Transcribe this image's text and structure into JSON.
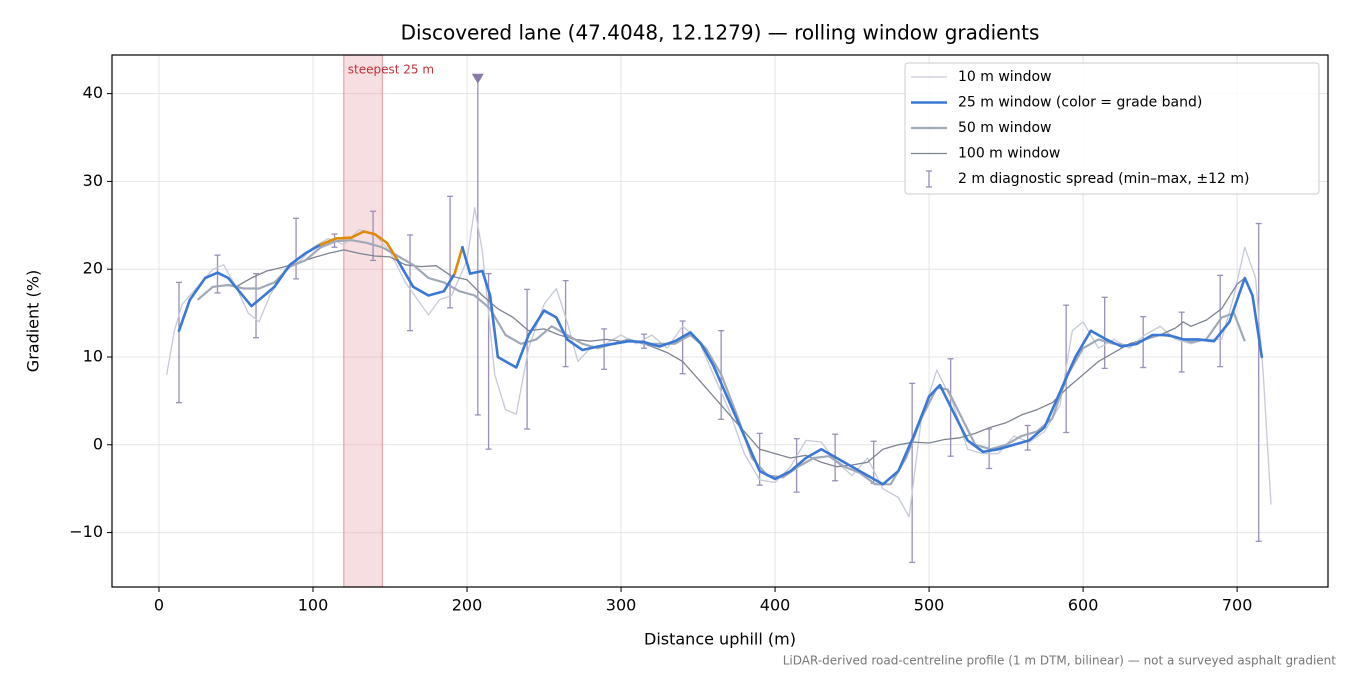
{
  "chart_data": {
    "type": "line",
    "title": "Discovered lane (47.4048, 12.1279) — rolling window gradients",
    "xlabel": "Distance uphill (m)",
    "ylabel": "Gradient (%)",
    "footnote": "LiDAR-derived road-centreline profile (1 m DTM, bilinear) — not a surveyed asphalt gradient",
    "xlim": [
      -30.5,
      759
    ],
    "ylim": [
      -16.2,
      44.4
    ],
    "xticks": [
      0,
      100,
      200,
      300,
      400,
      500,
      600,
      700
    ],
    "yticks": [
      {
        "value": -10,
        "label": "−10"
      },
      0,
      10,
      20,
      30,
      40
    ],
    "grid": true,
    "legend": "upper right",
    "highlight": {
      "text": "steepest 25 m",
      "x0": 120,
      "x1": 145,
      "color": "#e8a2aa"
    },
    "series": [
      {
        "name": "10 m window",
        "color": "#c5cad6",
        "line_width": 1.3,
        "x": [
          5,
          10,
          15,
          25,
          35,
          42,
          50,
          58,
          65,
          72,
          82,
          92,
          100,
          110,
          120,
          130,
          140,
          150,
          160,
          170,
          175,
          182,
          190,
          195,
          200,
          205,
          210,
          218,
          225,
          232,
          240,
          250,
          258,
          265,
          272,
          280,
          290,
          300,
          310,
          320,
          330,
          340,
          350,
          360,
          370,
          380,
          390,
          400,
          410,
          420,
          430,
          440,
          450,
          460,
          470,
          480,
          487,
          495,
          505,
          515,
          525,
          535,
          545,
          555,
          565,
          575,
          585,
          593,
          600,
          610,
          620,
          630,
          640,
          650,
          660,
          670,
          680,
          690,
          698,
          705,
          712,
          717,
          722
        ],
        "values": [
          8,
          13,
          16,
          18,
          20,
          20.5,
          18,
          15,
          14,
          17,
          20,
          21,
          22.5,
          23.5,
          22.8,
          24.5,
          24,
          22,
          18.5,
          16,
          14.8,
          16.5,
          17,
          19,
          21,
          27,
          22,
          8,
          4,
          3.5,
          11,
          16,
          17.8,
          14,
          9.5,
          11,
          11.5,
          12.5,
          11.5,
          12.5,
          11,
          13.5,
          12,
          8,
          4,
          -1,
          -4,
          -4.3,
          -2.5,
          0.5,
          0.3,
          -2,
          -3.5,
          -1.5,
          -5,
          -6,
          -8.2,
          3,
          8.5,
          5,
          -0.5,
          -1,
          -1,
          1,
          0.3,
          1.5,
          4.5,
          13,
          14,
          11,
          12,
          11,
          12.5,
          13.5,
          12,
          11.5,
          12,
          12,
          17,
          22.5,
          19,
          8,
          -6.8
        ]
      },
      {
        "name": "25 m window (color = grade band)",
        "color": "#3a78d6",
        "line_width": 2.6,
        "x": [
          13,
          20,
          30,
          38,
          45,
          52,
          60,
          65,
          75,
          85,
          95,
          105,
          115,
          125,
          133,
          140,
          148,
          155,
          165,
          175,
          185,
          192,
          197,
          202,
          210,
          215,
          220,
          225,
          232,
          240,
          250,
          258,
          265,
          275,
          285,
          295,
          305,
          315,
          325,
          335,
          345,
          352,
          360,
          370,
          380,
          390,
          400,
          410,
          420,
          430,
          440,
          450,
          460,
          470,
          480,
          490,
          500,
          507,
          515,
          525,
          535,
          545,
          555,
          565,
          575,
          585,
          595,
          605,
          615,
          625,
          635,
          645,
          655,
          665,
          675,
          685,
          695,
          705,
          710,
          716
        ],
        "values": [
          13,
          16.5,
          19,
          19.6,
          19,
          17.5,
          15.8,
          16.5,
          18,
          20.5,
          21.8,
          22.8,
          23.5,
          23.6,
          24.3,
          24,
          23,
          21,
          18,
          17,
          17.5,
          19.5,
          22.5,
          19.5,
          19.8,
          17,
          10,
          9.5,
          8.8,
          12.5,
          15.3,
          14.5,
          12,
          10.8,
          11.2,
          11.5,
          11.8,
          11.7,
          11.2,
          11.8,
          12.8,
          11.5,
          9,
          5,
          1,
          -3,
          -3.9,
          -3,
          -1.5,
          -0.5,
          -1.5,
          -2.5,
          -3.5,
          -4.5,
          -3,
          1,
          5.5,
          6.8,
          4,
          0.5,
          -0.8,
          -0.5,
          0,
          0.5,
          2,
          6,
          10,
          13,
          12,
          11.2,
          11.5,
          12.5,
          12.5,
          12,
          12,
          11.8,
          14,
          19,
          17,
          10
        ],
        "colors": [
          "#3a78d6",
          "#3a78d6",
          "#3a78d6",
          "#3a78d6",
          "#3a78d6",
          "#3a78d6",
          "#3a78d6",
          "#3a78d6",
          "#3a78d6",
          "#3a78d6",
          "#3a78d6",
          "#3a78d6",
          "#e08a0b",
          "#e08a0b",
          "#e08a0b",
          "#e08a0b",
          "#e08a0b",
          "#e08a0b",
          "#3a78d6",
          "#3a78d6",
          "#3a78d6",
          "#3a78d6",
          "#e08a0b",
          "#3a78d6",
          "#3a78d6",
          "#3a78d6",
          "#3a78d6",
          "#3a78d6",
          "#3a78d6",
          "#3a78d6",
          "#3a78d6",
          "#3a78d6",
          "#3a78d6",
          "#3a78d6",
          "#3a78d6",
          "#3a78d6",
          "#3a78d6",
          "#3a78d6",
          "#3a78d6",
          "#3a78d6",
          "#3a78d6",
          "#3a78d6",
          "#3a78d6",
          "#3a78d6",
          "#3a78d6",
          "#3a78d6",
          "#3a78d6",
          "#3a78d6",
          "#3a78d6",
          "#3a78d6",
          "#3a78d6",
          "#3a78d6",
          "#3a78d6",
          "#3a78d6",
          "#3a78d6",
          "#3a78d6",
          "#3a78d6",
          "#3a78d6",
          "#3a78d6",
          "#3a78d6",
          "#3a78d6",
          "#3a78d6",
          "#3a78d6",
          "#3a78d6",
          "#3a78d6",
          "#3a78d6",
          "#3a78d6",
          "#3a78d6",
          "#3a78d6",
          "#3a78d6",
          "#3a78d6",
          "#3a78d6",
          "#3a78d6",
          "#3a78d6",
          "#3a78d6",
          "#3a78d6",
          "#3a78d6",
          "#3a78d6",
          "#3a78d6",
          "#3a78d6"
        ]
      },
      {
        "name": "50 m window",
        "color": "#a0a9b8",
        "line_width": 2.2,
        "x": [
          25,
          35,
          45,
          55,
          65,
          75,
          85,
          95,
          105,
          115,
          125,
          135,
          145,
          155,
          165,
          175,
          185,
          195,
          205,
          215,
          225,
          235,
          245,
          255,
          265,
          275,
          285,
          295,
          305,
          315,
          325,
          335,
          345,
          355,
          365,
          375,
          385,
          395,
          405,
          415,
          425,
          435,
          445,
          455,
          465,
          475,
          485,
          495,
          505,
          512,
          520,
          530,
          540,
          550,
          560,
          570,
          580,
          590,
          600,
          610,
          620,
          630,
          640,
          650,
          660,
          670,
          680,
          690,
          698,
          705
        ],
        "values": [
          16.5,
          18,
          18.2,
          17.8,
          17.8,
          18.5,
          20.3,
          21,
          22.5,
          23.2,
          23.3,
          23,
          22.5,
          21.5,
          20.5,
          19,
          18.5,
          17.5,
          17,
          15.5,
          12.5,
          11.5,
          12,
          13.5,
          12.5,
          11.5,
          11,
          11.5,
          12,
          11.5,
          11.5,
          11.5,
          12.5,
          11,
          8,
          3.5,
          -1.5,
          -3.5,
          -3.7,
          -2.5,
          -1.5,
          -1.3,
          -2.5,
          -3.2,
          -4.5,
          -4.5,
          -1.5,
          3,
          6.5,
          6.3,
          3.5,
          0,
          -0.5,
          0,
          1,
          1.5,
          3,
          8,
          11,
          12,
          11.5,
          11.3,
          12,
          12.5,
          12.3,
          11.7,
          12,
          14.5,
          15,
          11.8
        ]
      },
      {
        "name": "100 m window",
        "color": "#7d8491",
        "line_width": 1.3,
        "x": [
          50,
          60,
          70,
          80,
          90,
          100,
          110,
          120,
          130,
          140,
          150,
          160,
          170,
          180,
          190,
          200,
          210,
          220,
          230,
          240,
          250,
          260,
          270,
          280,
          290,
          300,
          310,
          320,
          330,
          340,
          350,
          360,
          370,
          380,
          390,
          400,
          410,
          420,
          430,
          440,
          450,
          460,
          470,
          480,
          490,
          500,
          510,
          520,
          530,
          540,
          550,
          560,
          570,
          580,
          590,
          600,
          610,
          620,
          630,
          640,
          650,
          660,
          665,
          670,
          680,
          690,
          700,
          705
        ],
        "values": [
          18,
          19,
          19.8,
          20.2,
          20.7,
          21.3,
          21.8,
          22.2,
          21.8,
          21.5,
          21.4,
          20.5,
          20.3,
          20.4,
          19.2,
          18.8,
          17,
          15.5,
          14.5,
          13,
          13.2,
          12.5,
          12,
          11.8,
          12,
          11.8,
          11.8,
          11.2,
          10.5,
          9.5,
          7.5,
          5.5,
          3.5,
          1.5,
          -0.5,
          -1,
          -1.5,
          -1.2,
          -2,
          -2.5,
          -2.3,
          -2,
          -0.5,
          0,
          0.3,
          0.2,
          0.6,
          0.8,
          1.3,
          2,
          2.5,
          3.4,
          4,
          4.8,
          6.5,
          8,
          9.5,
          10.5,
          11.5,
          12,
          12.5,
          13.3,
          14,
          13.5,
          14.2,
          15.5,
          18.3,
          19
        ]
      }
    ],
    "spread": {
      "name": "2 m diagnostic spread (min–max, ±12 m)",
      "color": "#9a8fb8",
      "x": [
        13,
        38,
        63,
        89,
        114,
        139,
        163,
        189,
        207,
        214,
        239,
        264,
        289,
        315,
        340,
        365,
        390,
        414,
        439,
        464,
        489,
        514,
        539,
        564,
        589,
        614,
        639,
        664,
        689,
        714
      ],
      "low": [
        4.8,
        17.3,
        12.2,
        18.9,
        22.5,
        21,
        13,
        15.6,
        3.4,
        -0.5,
        1.8,
        8.9,
        8.6,
        11,
        8.1,
        2.9,
        -4.6,
        -5.4,
        -4.1,
        -4.4,
        -13.4,
        -1.3,
        -2.7,
        -0.6,
        1.4,
        8.7,
        8.8,
        8.3,
        8.9,
        -11
      ],
      "high": [
        18.5,
        21.6,
        19.5,
        25.8,
        24,
        26.6,
        23.9,
        28.3,
        41.7,
        19.5,
        17.7,
        18.7,
        13.2,
        12.6,
        14.1,
        13,
        1.3,
        0.7,
        1.2,
        0.4,
        7,
        9.8,
        1.8,
        2.2,
        15.9,
        16.8,
        14.6,
        15.1,
        19.3,
        25.2
      ],
      "peak_marker": {
        "x": 207,
        "y": 41.7
      }
    }
  }
}
